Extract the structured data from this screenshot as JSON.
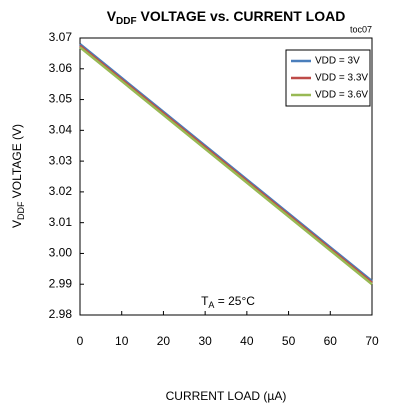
{
  "chart_data": {
    "type": "line",
    "title": [
      "V",
      "DDF",
      " VOLTAGE vs. CURRENT LOAD"
    ],
    "code": "toc07",
    "x_label": "CURRENT LOAD (µA)",
    "y_label": [
      "V",
      "DDF",
      " VOLTAGE (V)"
    ],
    "annotation": [
      "T",
      "A",
      " = 25°C"
    ],
    "x": [
      0,
      10,
      20,
      30,
      40,
      50,
      60,
      70
    ],
    "series": [
      {
        "name": "VDD = 3V",
        "color": "#4a7ebb",
        "values": [
          3.068,
          3.057,
          3.046,
          3.035,
          3.024,
          3.013,
          3.002,
          2.991
        ]
      },
      {
        "name": "VDD = 3.3V",
        "color": "#be4b48",
        "values": [
          3.0675,
          3.0565,
          3.0455,
          3.0345,
          3.0235,
          3.0125,
          3.0015,
          2.9905
        ]
      },
      {
        "name": "VDD = 3.6V",
        "color": "#98b954",
        "values": [
          3.067,
          3.056,
          3.045,
          3.034,
          3.023,
          3.012,
          3.001,
          2.99
        ]
      }
    ],
    "xlim": [
      0,
      70
    ],
    "xticks": [
      0,
      10,
      20,
      30,
      40,
      50,
      60,
      70
    ],
    "ylim": [
      2.98,
      3.07
    ],
    "yticks": [
      2.98,
      2.99,
      {
        "value": 3,
        "label": "3.00"
      },
      3.01,
      3.02,
      3.03,
      3.04,
      3.05,
      3.06,
      3.07
    ],
    "grid": false,
    "legend": "upper right"
  }
}
